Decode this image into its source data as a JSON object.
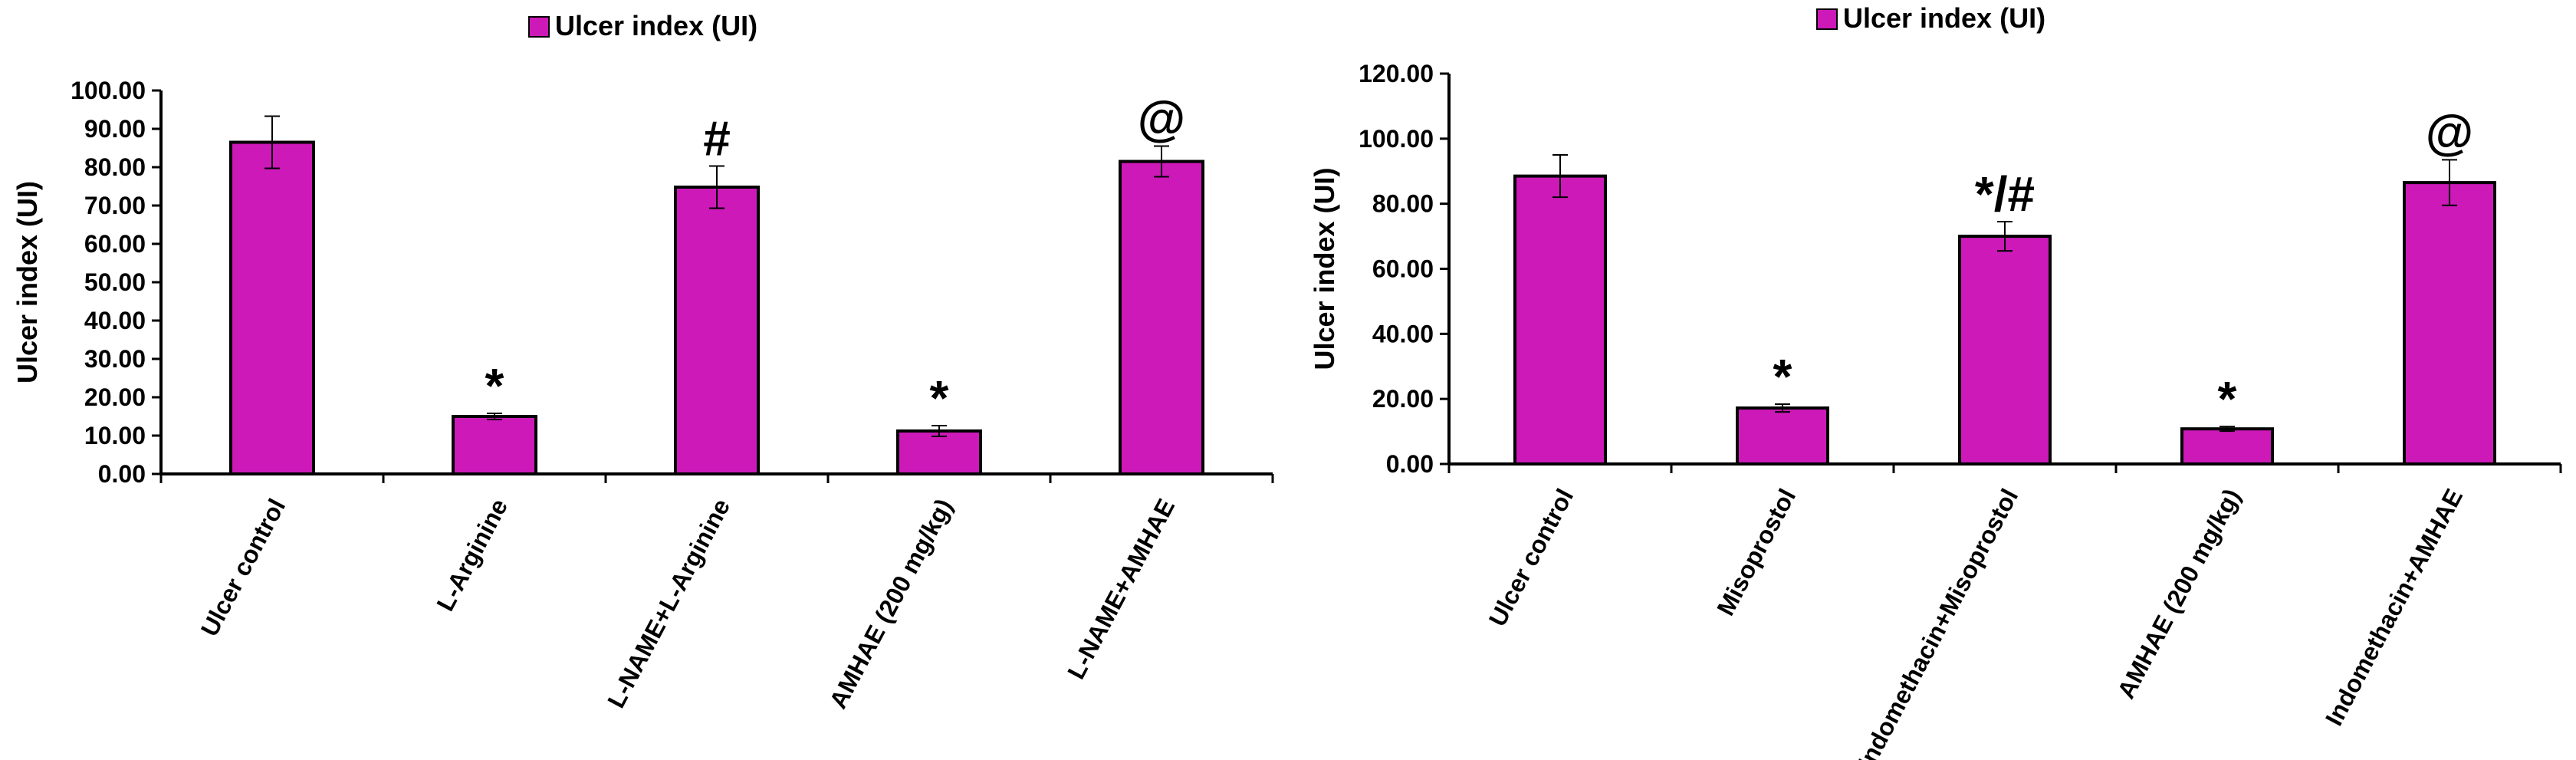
{
  "chart_data": [
    {
      "type": "bar",
      "title": "",
      "legend": [
        "Ulcer index (UI)"
      ],
      "legend_position": "top",
      "ylabel": "Ulcer index (UI)",
      "xlabel": "",
      "ylim": [
        0,
        100
      ],
      "yticks": [
        "0.00",
        "10.00",
        "20.00",
        "30.00",
        "40.00",
        "50.00",
        "60.00",
        "70.00",
        "80.00",
        "90.00",
        "100.00"
      ],
      "categories": [
        "Ulcer control",
        "L-Arginine",
        "L-NAME+L-Arginine",
        "AMHAE (200 mg/kg)",
        "L-NAME+AMHAE"
      ],
      "series": [
        {
          "name": "Ulcer index (UI)",
          "values": [
            86.5,
            15.0,
            74.8,
            11.2,
            81.5
          ],
          "errors": [
            6.8,
            0.8,
            5.5,
            1.4,
            4.0
          ],
          "markers": [
            "",
            "*",
            "#",
            "*",
            "@"
          ]
        }
      ],
      "bar_color": "#cc19b8",
      "grid": false
    },
    {
      "type": "bar",
      "title": "",
      "legend": [
        "Ulcer index (UI)"
      ],
      "legend_position": "top",
      "ylabel": "Ulcer index (UI)",
      "xlabel": "",
      "ylim": [
        0,
        120
      ],
      "yticks": [
        "0.00",
        "20.00",
        "40.00",
        "60.00",
        "80.00",
        "100.00",
        "120.00"
      ],
      "categories": [
        "Ulcer control",
        "Misoprostol",
        "Indomethacin+Misoprostol",
        "AMHAE (200 mg/kg)",
        "Indomethacin+AMHAE"
      ],
      "series": [
        {
          "name": "Ulcer index (UI)",
          "values": [
            88.5,
            17.2,
            70.0,
            10.8,
            86.5
          ],
          "errors": [
            6.5,
            1.2,
            4.5,
            0.7,
            7.0
          ],
          "markers": [
            "",
            "*",
            "*/#",
            "*",
            "@"
          ]
        }
      ],
      "bar_color": "#cc19b8",
      "grid": false
    }
  ]
}
